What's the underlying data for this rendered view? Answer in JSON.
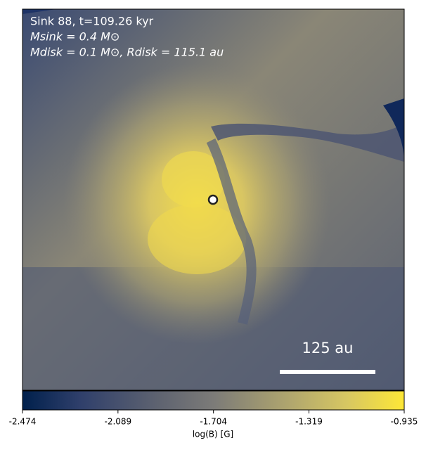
{
  "chart_data": {
    "type": "image",
    "annotations": [
      "Sink 88, t=109.26 kyr",
      "Msink = 0.4 M⊙",
      "Mdisk = 0.1 M⊙, Rdisk = 115.1 au"
    ],
    "scale_bar_label": "125 au",
    "colorbar": {
      "label": "log(B) [G]",
      "lim": [
        -2.474,
        -0.935
      ],
      "ticks": [
        -2.474,
        -2.089,
        -1.704,
        -1.319,
        -0.935
      ]
    }
  }
}
